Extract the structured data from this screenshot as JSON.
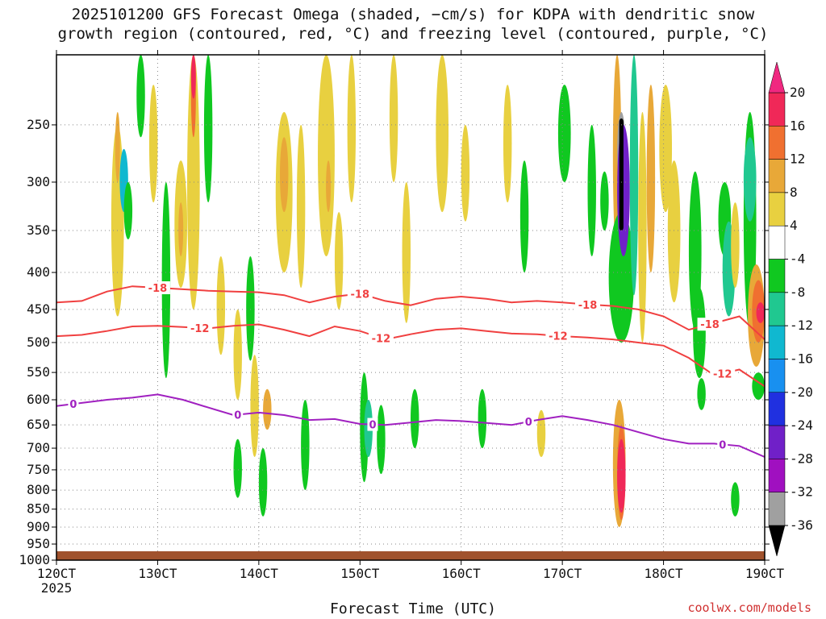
{
  "title_line1": "2025101200 GFS Forecast Omega (shaded, −cm/s) for KDPA with dendritic snow",
  "title_line2": "growth region (contoured, red, °C) and freezing level (contoured, purple, °C)",
  "credit": "coolwx.com/models",
  "chart_data": {
    "type": "heatmap",
    "title": "2025101200 GFS Forecast Omega (shaded, −cm/s) for KDPA with dendritic snow growth region (contoured, red, °C) and freezing level (contoured, purple, °C)",
    "xlabel": "Forecast Time (UTC)",
    "ylabel": "",
    "x_tick_labels": [
      "120CT",
      "130CT",
      "140CT",
      "150CT",
      "160CT",
      "170CT",
      "180CT",
      "190CT"
    ],
    "x_first_label_sub": "2025",
    "x_range_hours": [
      0,
      168
    ],
    "x_tick_hours": [
      0,
      24,
      48,
      72,
      96,
      120,
      144,
      168
    ],
    "y_levels_hpa": [
      250,
      300,
      350,
      400,
      450,
      500,
      550,
      600,
      650,
      700,
      750,
      800,
      850,
      900,
      950,
      1000
    ],
    "y_range_hpa": [
      200,
      1000
    ],
    "colorbar": {
      "labels": [
        "20",
        "16",
        "12",
        "8",
        "4",
        "-4",
        "-8",
        "-12",
        "-16",
        "-20",
        "-24",
        "-28",
        "-32",
        "-36"
      ],
      "bins": [
        {
          "from": 16,
          "to": 20,
          "color": "#f02858"
        },
        {
          "from": 12,
          "to": 16,
          "color": "#f07030"
        },
        {
          "from": 8,
          "to": 12,
          "color": "#e8a838"
        },
        {
          "from": 4,
          "to": 8,
          "color": "#e8d040"
        },
        {
          "from": -4,
          "to": 4,
          "color": "#ffffff"
        },
        {
          "from": -8,
          "to": -4,
          "color": "#10c820"
        },
        {
          "from": -12,
          "to": -8,
          "color": "#20c890"
        },
        {
          "from": -16,
          "to": -12,
          "color": "#10b8d0"
        },
        {
          "from": -20,
          "to": -16,
          "color": "#1890f0"
        },
        {
          "from": -24,
          "to": -20,
          "color": "#2030e0"
        },
        {
          "from": -28,
          "to": -24,
          "color": "#7020c8"
        },
        {
          "from": -32,
          "to": -28,
          "color": "#a010c0"
        },
        {
          "from": -36,
          "to": -32,
          "color": "#a0a0a0"
        }
      ],
      "over_color": "#f02880",
      "under_color": "#000000"
    },
    "contours": [
      {
        "label": "-18",
        "color": "#f04040",
        "x": [
          0,
          6,
          12,
          18,
          24,
          30,
          36,
          42,
          48,
          54,
          60,
          66,
          72,
          78,
          84,
          90,
          96,
          102,
          108,
          114,
          120,
          126,
          132,
          138,
          144,
          150,
          156,
          162,
          168
        ],
        "y": [
          440,
          438,
          425,
          418,
          420,
          422,
          424,
          425,
          426,
          430,
          440,
          432,
          428,
          438,
          444,
          435,
          432,
          435,
          440,
          438,
          440,
          443,
          445,
          450,
          460,
          480,
          470,
          460,
          495
        ]
      },
      {
        "label": "-12",
        "color": "#f04040",
        "x": [
          0,
          6,
          12,
          18,
          24,
          30,
          36,
          42,
          48,
          54,
          60,
          66,
          72,
          78,
          84,
          90,
          96,
          102,
          108,
          114,
          120,
          126,
          132,
          138,
          144,
          150,
          156,
          162,
          168
        ],
        "y": [
          490,
          488,
          482,
          475,
          474,
          476,
          478,
          474,
          472,
          480,
          490,
          475,
          482,
          495,
          487,
          480,
          478,
          482,
          486,
          487,
          490,
          492,
          495,
          500,
          505,
          525,
          555,
          545,
          575
        ]
      },
      {
        "label": "0",
        "color": "#a020c0",
        "x": [
          0,
          6,
          12,
          18,
          24,
          30,
          36,
          42,
          48,
          54,
          60,
          66,
          72,
          78,
          84,
          90,
          96,
          102,
          108,
          114,
          120,
          126,
          132,
          138,
          144,
          150,
          156,
          162,
          168
        ],
        "y": [
          612,
          606,
          600,
          596,
          590,
          600,
          615,
          630,
          625,
          630,
          640,
          638,
          648,
          650,
          645,
          640,
          642,
          646,
          650,
          640,
          632,
          640,
          650,
          665,
          680,
          690,
          690,
          695,
          720
        ]
      }
    ],
    "contour_label_marks": [
      {
        "text": "-18",
        "x": 24
      },
      {
        "text": "-18",
        "x": 72
      },
      {
        "text": "-18",
        "x": 126
      },
      {
        "text": "-18",
        "x": 155
      },
      {
        "text": "-12",
        "x": 34
      },
      {
        "text": "-12",
        "x": 77
      },
      {
        "text": "-12",
        "x": 119
      },
      {
        "text": "-12",
        "x": 158
      },
      {
        "text": "0",
        "x": 4
      },
      {
        "text": "0",
        "x": 43
      },
      {
        "text": "0",
        "x": 75
      },
      {
        "text": "0",
        "x": 112
      },
      {
        "text": "0",
        "x": 158
      }
    ],
    "omega_cells": [
      {
        "x": [
          13,
          16
        ],
        "p": [
          250,
          460
        ],
        "v": 5
      },
      {
        "x": [
          14,
          15
        ],
        "p": [
          240,
          300
        ],
        "v": 9
      },
      {
        "x": [
          15,
          17
        ],
        "p": [
          270,
          330
        ],
        "v": -16
      },
      {
        "x": [
          16,
          18
        ],
        "p": [
          300,
          360
        ],
        "v": -5
      },
      {
        "x": [
          19,
          21
        ],
        "p": [
          200,
          260
        ],
        "v": -6
      },
      {
        "x": [
          22,
          24
        ],
        "p": [
          220,
          320
        ],
        "v": 6
      },
      {
        "x": [
          25,
          27
        ],
        "p": [
          300,
          560
        ],
        "v": -5
      },
      {
        "x": [
          28,
          31
        ],
        "p": [
          280,
          420
        ],
        "v": 6
      },
      {
        "x": [
          29,
          30
        ],
        "p": [
          320,
          380
        ],
        "v": 10
      },
      {
        "x": [
          31,
          34
        ],
        "p": [
          200,
          450
        ],
        "v": 7
      },
      {
        "x": [
          32,
          33
        ],
        "p": [
          200,
          260
        ],
        "v": 14
      },
      {
        "x": [
          32,
          33
        ],
        "p": [
          200,
          230
        ],
        "v": 19
      },
      {
        "x": [
          35,
          37
        ],
        "p": [
          200,
          320
        ],
        "v": -6
      },
      {
        "x": [
          38,
          40
        ],
        "p": [
          380,
          520
        ],
        "v": 5
      },
      {
        "x": [
          42,
          44
        ],
        "p": [
          450,
          600
        ],
        "v": 6
      },
      {
        "x": [
          42,
          44
        ],
        "p": [
          680,
          820
        ],
        "v": -6
      },
      {
        "x": [
          45,
          47
        ],
        "p": [
          380,
          530
        ],
        "v": -6
      },
      {
        "x": [
          46,
          48
        ],
        "p": [
          520,
          720
        ],
        "v": 6
      },
      {
        "x": [
          48,
          50
        ],
        "p": [
          700,
          870
        ],
        "v": -6
      },
      {
        "x": [
          49,
          51
        ],
        "p": [
          580,
          660
        ],
        "v": 8
      },
      {
        "x": [
          52,
          56
        ],
        "p": [
          240,
          400
        ],
        "v": 7
      },
      {
        "x": [
          53,
          55
        ],
        "p": [
          260,
          330
        ],
        "v": 10
      },
      {
        "x": [
          57,
          59
        ],
        "p": [
          250,
          420
        ],
        "v": 5
      },
      {
        "x": [
          58,
          60
        ],
        "p": [
          600,
          800
        ],
        "v": -6
      },
      {
        "x": [
          62,
          66
        ],
        "p": [
          200,
          380
        ],
        "v": 6
      },
      {
        "x": [
          64,
          65
        ],
        "p": [
          280,
          330
        ],
        "v": 11
      },
      {
        "x": [
          66,
          68
        ],
        "p": [
          330,
          450
        ],
        "v": 6
      },
      {
        "x": [
          69,
          71
        ],
        "p": [
          200,
          320
        ],
        "v": 5
      },
      {
        "x": [
          72,
          74
        ],
        "p": [
          550,
          780
        ],
        "v": -6
      },
      {
        "x": [
          73,
          75
        ],
        "p": [
          600,
          720
        ],
        "v": -12
      },
      {
        "x": [
          76,
          78
        ],
        "p": [
          610,
          760
        ],
        "v": -8
      },
      {
        "x": [
          79,
          81
        ],
        "p": [
          200,
          300
        ],
        "v": 5
      },
      {
        "x": [
          82,
          84
        ],
        "p": [
          300,
          470
        ],
        "v": 5
      },
      {
        "x": [
          84,
          86
        ],
        "p": [
          580,
          700
        ],
        "v": -6
      },
      {
        "x": [
          90,
          93
        ],
        "p": [
          200,
          330
        ],
        "v": 5
      },
      {
        "x": [
          96,
          98
        ],
        "p": [
          250,
          340
        ],
        "v": 6
      },
      {
        "x": [
          100,
          102
        ],
        "p": [
          580,
          700
        ],
        "v": -6
      },
      {
        "x": [
          106,
          108
        ],
        "p": [
          220,
          320
        ],
        "v": 6
      },
      {
        "x": [
          110,
          112
        ],
        "p": [
          280,
          400
        ],
        "v": -6
      },
      {
        "x": [
          114,
          116
        ],
        "p": [
          620,
          720
        ],
        "v": 6
      },
      {
        "x": [
          119,
          122
        ],
        "p": [
          220,
          300
        ],
        "v": -6
      },
      {
        "x": [
          126,
          128
        ],
        "p": [
          250,
          380
        ],
        "v": -6
      },
      {
        "x": [
          129,
          131
        ],
        "p": [
          290,
          350
        ],
        "v": -8
      },
      {
        "x": [
          132,
          134
        ],
        "p": [
          200,
          380
        ],
        "v": 8
      },
      {
        "x": [
          132,
          135
        ],
        "p": [
          600,
          900
        ],
        "v": 8
      },
      {
        "x": [
          133,
          135
        ],
        "p": [
          650,
          880
        ],
        "v": 14
      },
      {
        "x": [
          133,
          135
        ],
        "p": [
          680,
          860
        ],
        "v": 19
      },
      {
        "x": [
          131,
          137
        ],
        "p": [
          330,
          500
        ],
        "v": -8
      },
      {
        "x": [
          133,
          135
        ],
        "p": [
          240,
          310
        ],
        "v": -34
      },
      {
        "x": [
          133,
          136
        ],
        "p": [
          250,
          380
        ],
        "v": -26
      },
      {
        "x": [
          136,
          138
        ],
        "p": [
          200,
          430
        ],
        "v": -12
      },
      {
        "x": [
          138,
          140
        ],
        "p": [
          240,
          500
        ],
        "v": 5
      },
      {
        "x": [
          140,
          142
        ],
        "p": [
          220,
          400
        ],
        "v": 9
      },
      {
        "x": [
          143,
          146
        ],
        "p": [
          220,
          330
        ],
        "v": 6
      },
      {
        "x": [
          145,
          148
        ],
        "p": [
          280,
          440
        ],
        "v": 5
      },
      {
        "x": [
          150,
          153
        ],
        "p": [
          290,
          480
        ],
        "v": -6
      },
      {
        "x": [
          151,
          154
        ],
        "p": [
          420,
          560
        ],
        "v": -8
      },
      {
        "x": [
          152,
          154
        ],
        "p": [
          560,
          620
        ],
        "v": -6
      },
      {
        "x": [
          157,
          160
        ],
        "p": [
          300,
          380
        ],
        "v": -6
      },
      {
        "x": [
          158,
          161
        ],
        "p": [
          340,
          460
        ],
        "v": -12
      },
      {
        "x": [
          160,
          162
        ],
        "p": [
          320,
          420
        ],
        "v": 5
      },
      {
        "x": [
          160,
          162
        ],
        "p": [
          780,
          870
        ],
        "v": -6
      },
      {
        "x": [
          163,
          166
        ],
        "p": [
          240,
          480
        ],
        "v": -6
      },
      {
        "x": [
          163,
          166
        ],
        "p": [
          260,
          340
        ],
        "v": -10
      },
      {
        "x": [
          164,
          168
        ],
        "p": [
          390,
          540
        ],
        "v": 8
      },
      {
        "x": [
          165,
          168
        ],
        "p": [
          410,
          500
        ],
        "v": 15
      },
      {
        "x": [
          166,
          168
        ],
        "p": [
          440,
          470
        ],
        "v": 19
      },
      {
        "x": [
          165,
          168
        ],
        "p": [
          550,
          600
        ],
        "v": -6
      }
    ],
    "black_spike": {
      "x": [
        133.5,
        134.5
      ],
      "p": [
        245,
        350
      ],
      "v": -40
    },
    "ground": {
      "p_top": 972,
      "color": "#a0522d"
    }
  }
}
